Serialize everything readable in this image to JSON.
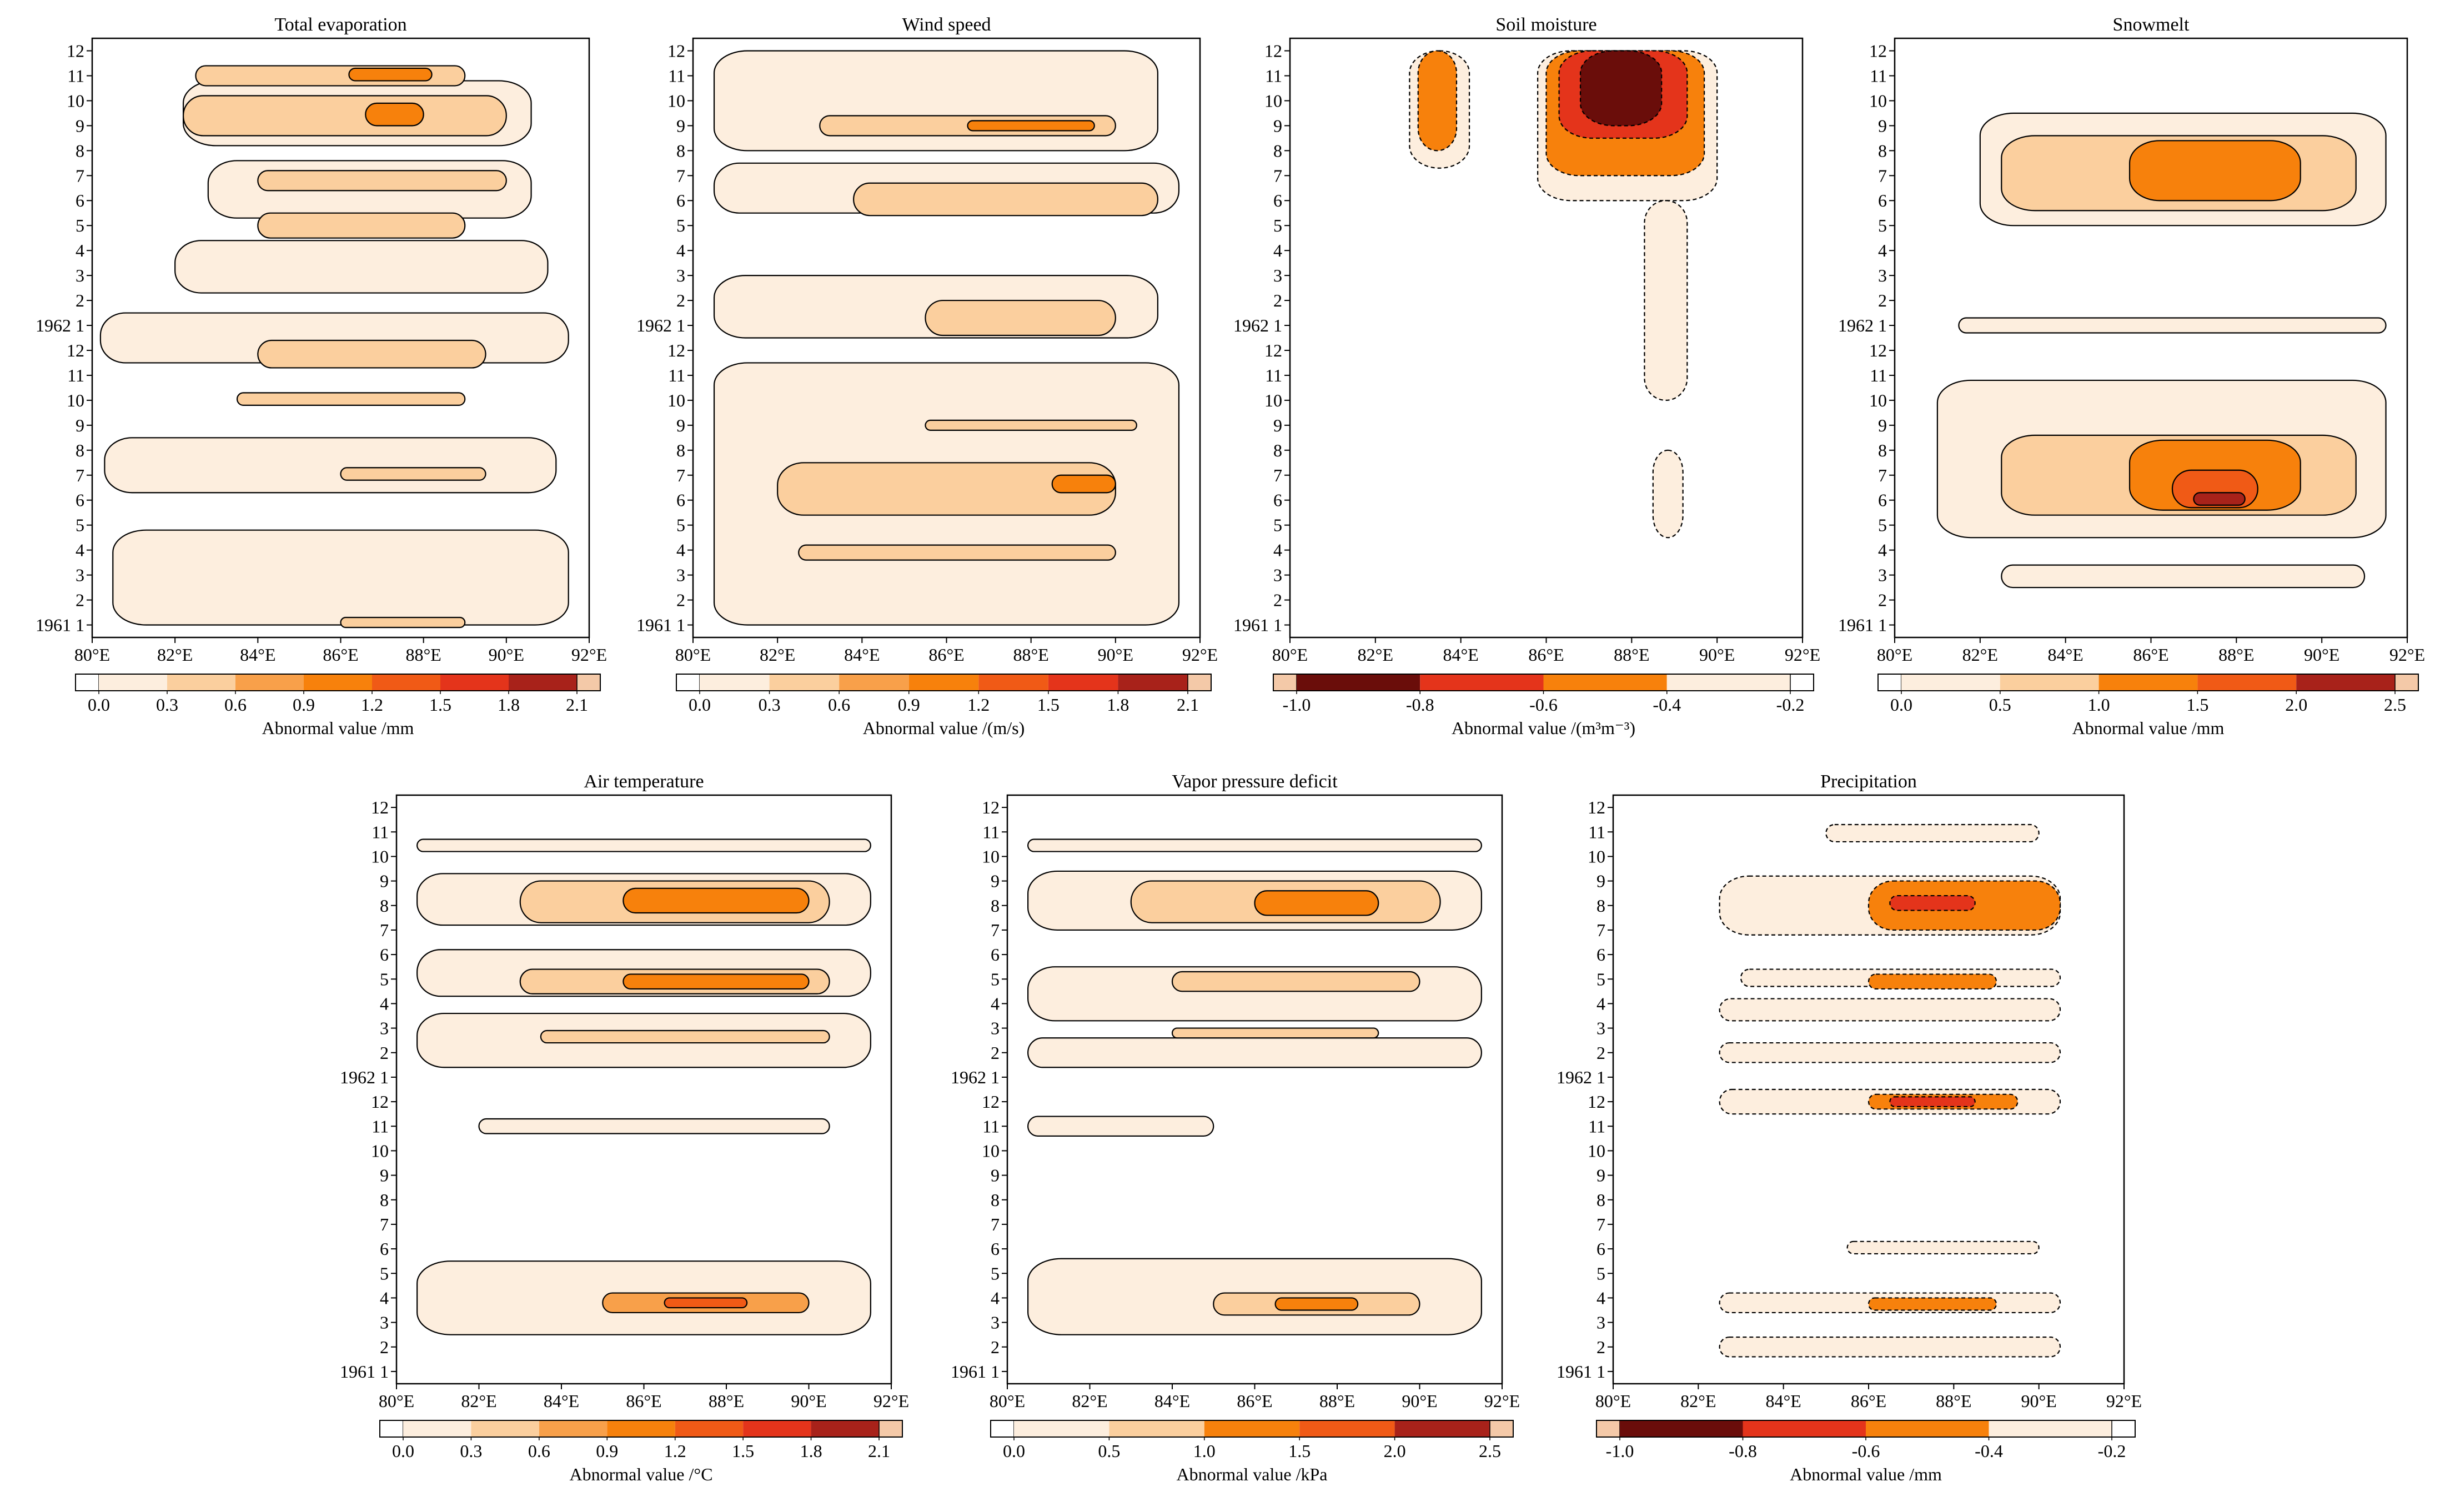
{
  "figure": {
    "x_ticks": [
      "80°E",
      "82°E",
      "84°E",
      "86°E",
      "88°E",
      "90°E",
      "92°E"
    ],
    "y_ticks": [
      "1961 1",
      "2",
      "3",
      "4",
      "5",
      "6",
      "7",
      "8",
      "9",
      "10",
      "11",
      "12",
      "1962 1",
      "2",
      "3",
      "4",
      "5",
      "6",
      "7",
      "8",
      "9",
      "10",
      "11",
      "12"
    ]
  },
  "colors": {
    "pos_scale": [
      "#fdeede",
      "#fbcf9e",
      "#f8a04a",
      "#f7810c",
      "#f05a16",
      "#e4341b",
      "#a8221a",
      "#6a0d0a"
    ],
    "neg_scale": [
      "#6a0d0a",
      "#e4341b",
      "#f7810c",
      "#fdeede"
    ]
  },
  "chart_data": [
    {
      "type": "heatmap",
      "title": "Total evaporation",
      "colorbar_label": "Abnormal value /mm",
      "colorbar_ticks": [
        "0.0",
        "0.3",
        "0.6",
        "0.9",
        "1.2",
        "1.5",
        "1.8",
        "2.1"
      ],
      "levels": [
        0,
        0.3,
        0.6,
        0.9,
        1.2,
        1.5,
        1.8,
        2.1
      ],
      "xlim": [
        80,
        92
      ],
      "ylim": [
        1,
        24
      ],
      "line_style": "solid",
      "blobs": [
        {
          "x": [
            82.2,
            90.6
          ],
          "y": [
            20.2,
            22.8
          ],
          "v": 0.25
        },
        {
          "x": [
            82.8,
            90.6
          ],
          "y": [
            17.3,
            19.6
          ],
          "v": 0.25
        },
        {
          "x": [
            82.0,
            91.0
          ],
          "y": [
            14.3,
            16.4
          ],
          "v": 0.2
        },
        {
          "x": [
            80.2,
            91.5
          ],
          "y": [
            11.5,
            13.5
          ],
          "v": 0.2
        },
        {
          "x": [
            80.3,
            91.2
          ],
          "y": [
            6.3,
            8.5
          ],
          "v": 0.18
        },
        {
          "x": [
            80.5,
            91.5
          ],
          "y": [
            1.0,
            4.8
          ],
          "v": 0.15
        },
        {
          "x": [
            82.5,
            89.0
          ],
          "y": [
            22.6,
            23.4
          ],
          "v": 0.5
        },
        {
          "x": [
            82.2,
            90.0
          ],
          "y": [
            20.6,
            22.2
          ],
          "v": 0.5
        },
        {
          "x": [
            84.0,
            90.0
          ],
          "y": [
            18.4,
            19.2
          ],
          "v": 0.45
        },
        {
          "x": [
            84.0,
            89.0
          ],
          "y": [
            16.5,
            17.5
          ],
          "v": 0.45
        },
        {
          "x": [
            84.0,
            89.5
          ],
          "y": [
            11.3,
            12.4
          ],
          "v": 0.5
        },
        {
          "x": [
            83.5,
            89.0
          ],
          "y": [
            9.8,
            10.3
          ],
          "v": 0.45
        },
        {
          "x": [
            86.0,
            89.5
          ],
          "y": [
            6.8,
            7.3
          ],
          "v": 0.4
        },
        {
          "x": [
            86.0,
            89.0
          ],
          "y": [
            0.9,
            1.3
          ],
          "v": 0.4
        },
        {
          "x": [
            86.2,
            88.2
          ],
          "y": [
            22.8,
            23.3
          ],
          "v": 1.0
        },
        {
          "x": [
            86.6,
            88.0
          ],
          "y": [
            21.0,
            21.9
          ],
          "v": 1.1
        }
      ]
    },
    {
      "type": "heatmap",
      "title": "Wind speed",
      "colorbar_label": "Abnormal value /(m/s)",
      "colorbar_ticks": [
        "0.0",
        "0.3",
        "0.6",
        "0.9",
        "1.2",
        "1.5",
        "1.8",
        "2.1"
      ],
      "levels": [
        0,
        0.3,
        0.6,
        0.9,
        1.2,
        1.5,
        1.8,
        2.1
      ],
      "xlim": [
        80,
        92
      ],
      "ylim": [
        1,
        24
      ],
      "line_style": "solid",
      "blobs": [
        {
          "x": [
            80.5,
            91.0
          ],
          "y": [
            20.0,
            24.0
          ],
          "v": 0.22
        },
        {
          "x": [
            80.5,
            91.5
          ],
          "y": [
            17.5,
            19.5
          ],
          "v": 0.22
        },
        {
          "x": [
            80.5,
            91.0
          ],
          "y": [
            12.5,
            15.0
          ],
          "v": 0.2
        },
        {
          "x": [
            80.5,
            91.5
          ],
          "y": [
            1.0,
            11.5
          ],
          "v": 0.18
        },
        {
          "x": [
            83.0,
            90.0
          ],
          "y": [
            20.6,
            21.4
          ],
          "v": 0.5
        },
        {
          "x": [
            83.8,
            91.0
          ],
          "y": [
            17.4,
            18.7
          ],
          "v": 0.5
        },
        {
          "x": [
            85.5,
            90.0
          ],
          "y": [
            12.6,
            14.0
          ],
          "v": 0.45
        },
        {
          "x": [
            82.0,
            90.0
          ],
          "y": [
            5.4,
            7.5
          ],
          "v": 0.55
        },
        {
          "x": [
            82.5,
            90.0
          ],
          "y": [
            3.6,
            4.2
          ],
          "v": 0.45
        },
        {
          "x": [
            85.5,
            90.5
          ],
          "y": [
            8.8,
            9.2
          ],
          "v": 0.4
        },
        {
          "x": [
            86.5,
            89.5
          ],
          "y": [
            20.8,
            21.2
          ],
          "v": 1.1
        },
        {
          "x": [
            88.5,
            90.0
          ],
          "y": [
            6.3,
            7.0
          ],
          "v": 1.1
        }
      ]
    },
    {
      "type": "heatmap",
      "title": "Soil moisture",
      "colorbar_label": "Abnormal value /(m³m⁻³)",
      "colorbar_ticks": [
        "-1.0",
        "-0.8",
        "-0.6",
        "-0.4",
        "-0.2"
      ],
      "levels": [
        -1.0,
        -0.8,
        -0.6,
        -0.4,
        -0.2
      ],
      "xlim": [
        80,
        92
      ],
      "ylim": [
        1,
        24
      ],
      "line_style": "dashed",
      "blobs": [
        {
          "x": [
            85.8,
            90.0
          ],
          "y": [
            18.0,
            24.0
          ],
          "v": -0.3
        },
        {
          "x": [
            88.3,
            89.3
          ],
          "y": [
            10.0,
            18.0
          ],
          "v": -0.3
        },
        {
          "x": [
            82.8,
            84.2
          ],
          "y": [
            19.3,
            24.0
          ],
          "v": -0.3
        },
        {
          "x": [
            88.5,
            89.2
          ],
          "y": [
            4.5,
            8.0
          ],
          "v": -0.3
        },
        {
          "x": [
            86.0,
            89.7
          ],
          "y": [
            19.0,
            24.0
          ],
          "v": -0.55
        },
        {
          "x": [
            83.0,
            83.9
          ],
          "y": [
            20.0,
            24.0
          ],
          "v": -0.45
        },
        {
          "x": [
            86.3,
            89.3
          ],
          "y": [
            20.5,
            24.0
          ],
          "v": -0.75
        },
        {
          "x": [
            86.8,
            88.7
          ],
          "y": [
            21.0,
            24.0
          ],
          "v": -0.9
        }
      ]
    },
    {
      "type": "heatmap",
      "title": "Snowmelt",
      "colorbar_label": "Abnormal value /mm",
      "colorbar_ticks": [
        "0.0",
        "0.5",
        "1.0",
        "1.5",
        "2.0",
        "2.5"
      ],
      "levels": [
        0,
        0.5,
        1.0,
        1.5,
        2.0,
        2.5
      ],
      "xlim": [
        80,
        92
      ],
      "ylim": [
        1,
        24
      ],
      "line_style": "solid",
      "blobs": [
        {
          "x": [
            82.0,
            91.5
          ],
          "y": [
            17.0,
            21.5
          ],
          "v": 0.3
        },
        {
          "x": [
            81.0,
            91.5
          ],
          "y": [
            4.5,
            10.8
          ],
          "v": 0.3
        },
        {
          "x": [
            81.5,
            91.5
          ],
          "y": [
            12.7,
            13.3
          ],
          "v": 0.25
        },
        {
          "x": [
            82.5,
            91.0
          ],
          "y": [
            2.5,
            3.4
          ],
          "v": 0.25
        },
        {
          "x": [
            82.5,
            90.8
          ],
          "y": [
            17.6,
            20.6
          ],
          "v": 0.75
        },
        {
          "x": [
            82.5,
            90.8
          ],
          "y": [
            5.4,
            8.6
          ],
          "v": 0.75
        },
        {
          "x": [
            85.5,
            89.5
          ],
          "y": [
            18.0,
            20.4
          ],
          "v": 1.3
        },
        {
          "x": [
            85.5,
            89.5
          ],
          "y": [
            5.6,
            8.4
          ],
          "v": 1.3
        },
        {
          "x": [
            86.5,
            88.5
          ],
          "y": [
            5.7,
            7.2
          ],
          "v": 1.8
        },
        {
          "x": [
            87.0,
            88.2
          ],
          "y": [
            5.8,
            6.3
          ],
          "v": 2.2
        }
      ]
    },
    {
      "type": "heatmap",
      "title": "Air temperature",
      "colorbar_label": "Abnormal value /°C",
      "colorbar_ticks": [
        "0.0",
        "0.3",
        "0.6",
        "0.9",
        "1.2",
        "1.5",
        "1.8",
        "2.1"
      ],
      "levels": [
        0,
        0.3,
        0.6,
        0.9,
        1.2,
        1.5,
        1.8,
        2.1
      ],
      "xlim": [
        80,
        92
      ],
      "ylim": [
        1,
        24
      ],
      "line_style": "solid",
      "blobs": [
        {
          "x": [
            80.5,
            91.5
          ],
          "y": [
            19.2,
            21.3
          ],
          "v": 0.2
        },
        {
          "x": [
            80.5,
            91.5
          ],
          "y": [
            16.3,
            18.2
          ],
          "v": 0.2
        },
        {
          "x": [
            80.5,
            91.5
          ],
          "y": [
            13.4,
            15.6
          ],
          "v": 0.2
        },
        {
          "x": [
            80.5,
            91.5
          ],
          "y": [
            22.2,
            22.7
          ],
          "v": 0.15
        },
        {
          "x": [
            80.5,
            91.5
          ],
          "y": [
            2.5,
            5.5
          ],
          "v": 0.18
        },
        {
          "x": [
            82.0,
            90.5
          ],
          "y": [
            10.7,
            11.3
          ],
          "v": 0.12
        },
        {
          "x": [
            83.0,
            90.5
          ],
          "y": [
            19.3,
            21.0
          ],
          "v": 0.5
        },
        {
          "x": [
            83.0,
            90.5
          ],
          "y": [
            16.4,
            17.4
          ],
          "v": 0.5
        },
        {
          "x": [
            83.5,
            90.5
          ],
          "y": [
            14.4,
            14.9
          ],
          "v": 0.4
        },
        {
          "x": [
            85.5,
            90.0
          ],
          "y": [
            19.7,
            20.7
          ],
          "v": 0.95
        },
        {
          "x": [
            85.5,
            90.0
          ],
          "y": [
            16.6,
            17.2
          ],
          "v": 0.95
        },
        {
          "x": [
            85.0,
            90.0
          ],
          "y": [
            3.4,
            4.2
          ],
          "v": 0.7
        },
        {
          "x": [
            86.5,
            88.5
          ],
          "y": [
            3.6,
            4.0
          ],
          "v": 1.2
        }
      ]
    },
    {
      "type": "heatmap",
      "title": "Vapor pressure deficit",
      "colorbar_label": "Abnormal value /kPa",
      "colorbar_ticks": [
        "0.0",
        "0.5",
        "1.0",
        "1.5",
        "2.0",
        "2.5"
      ],
      "levels": [
        0,
        0.5,
        1.0,
        1.5,
        2.0,
        2.5
      ],
      "xlim": [
        80,
        92
      ],
      "ylim": [
        1,
        24
      ],
      "line_style": "solid",
      "blobs": [
        {
          "x": [
            80.5,
            91.5
          ],
          "y": [
            19.0,
            21.4
          ],
          "v": 0.3
        },
        {
          "x": [
            80.5,
            91.5
          ],
          "y": [
            15.3,
            17.5
          ],
          "v": 0.3
        },
        {
          "x": [
            80.5,
            91.5
          ],
          "y": [
            13.4,
            14.6
          ],
          "v": 0.25
        },
        {
          "x": [
            80.5,
            91.5
          ],
          "y": [
            22.2,
            22.7
          ],
          "v": 0.2
        },
        {
          "x": [
            80.5,
            91.5
          ],
          "y": [
            2.5,
            5.6
          ],
          "v": 0.25
        },
        {
          "x": [
            80.5,
            85.0
          ],
          "y": [
            10.6,
            11.4
          ],
          "v": 0.2
        },
        {
          "x": [
            83.0,
            90.5
          ],
          "y": [
            19.3,
            21.0
          ],
          "v": 0.8
        },
        {
          "x": [
            84.0,
            90.0
          ],
          "y": [
            16.5,
            17.3
          ],
          "v": 0.8
        },
        {
          "x": [
            84.0,
            89.0
          ],
          "y": [
            14.6,
            15.0
          ],
          "v": 0.65
        },
        {
          "x": [
            86.0,
            89.0
          ],
          "y": [
            19.6,
            20.6
          ],
          "v": 1.3
        },
        {
          "x": [
            85.0,
            90.0
          ],
          "y": [
            3.3,
            4.2
          ],
          "v": 0.8
        },
        {
          "x": [
            86.5,
            88.5
          ],
          "y": [
            3.5,
            4.0
          ],
          "v": 1.2
        }
      ]
    },
    {
      "type": "heatmap",
      "title": "Precipitation",
      "colorbar_label": "Abnormal value /mm",
      "colorbar_ticks": [
        "-1.0",
        "-0.8",
        "-0.6",
        "-0.4",
        "-0.2"
      ],
      "levels": [
        -1.0,
        -0.8,
        -0.6,
        -0.4,
        -0.2
      ],
      "xlim": [
        80,
        92
      ],
      "ylim": [
        1,
        24
      ],
      "line_style": "dashed",
      "blobs": [
        {
          "x": [
            82.5,
            90.5
          ],
          "y": [
            18.8,
            21.2
          ],
          "v": -0.3
        },
        {
          "x": [
            83.0,
            90.5
          ],
          "y": [
            16.7,
            17.4
          ],
          "v": -0.3
        },
        {
          "x": [
            82.5,
            90.5
          ],
          "y": [
            15.3,
            16.2
          ],
          "v": -0.3
        },
        {
          "x": [
            82.5,
            90.5
          ],
          "y": [
            13.6,
            14.4
          ],
          "v": -0.3
        },
        {
          "x": [
            82.5,
            90.5
          ],
          "y": [
            11.5,
            12.5
          ],
          "v": -0.3
        },
        {
          "x": [
            85.5,
            90.0
          ],
          "y": [
            5.8,
            6.3
          ],
          "v": -0.3
        },
        {
          "x": [
            82.5,
            90.5
          ],
          "y": [
            3.4,
            4.2
          ],
          "v": -0.3
        },
        {
          "x": [
            82.5,
            90.5
          ],
          "y": [
            1.6,
            2.4
          ],
          "v": -0.3
        },
        {
          "x": [
            85.0,
            90.0
          ],
          "y": [
            22.6,
            23.3
          ],
          "v": -0.3
        },
        {
          "x": [
            86.0,
            90.5
          ],
          "y": [
            19.0,
            21.0
          ],
          "v": -0.5
        },
        {
          "x": [
            86.0,
            89.5
          ],
          "y": [
            11.7,
            12.3
          ],
          "v": -0.5
        },
        {
          "x": [
            86.0,
            89.0
          ],
          "y": [
            16.6,
            17.2
          ],
          "v": -0.5
        },
        {
          "x": [
            86.0,
            89.0
          ],
          "y": [
            3.5,
            4.0
          ],
          "v": -0.5
        },
        {
          "x": [
            86.5,
            88.5
          ],
          "y": [
            19.8,
            20.4
          ],
          "v": -0.7
        },
        {
          "x": [
            86.5,
            88.5
          ],
          "y": [
            11.8,
            12.2
          ],
          "v": -0.7
        }
      ]
    }
  ]
}
